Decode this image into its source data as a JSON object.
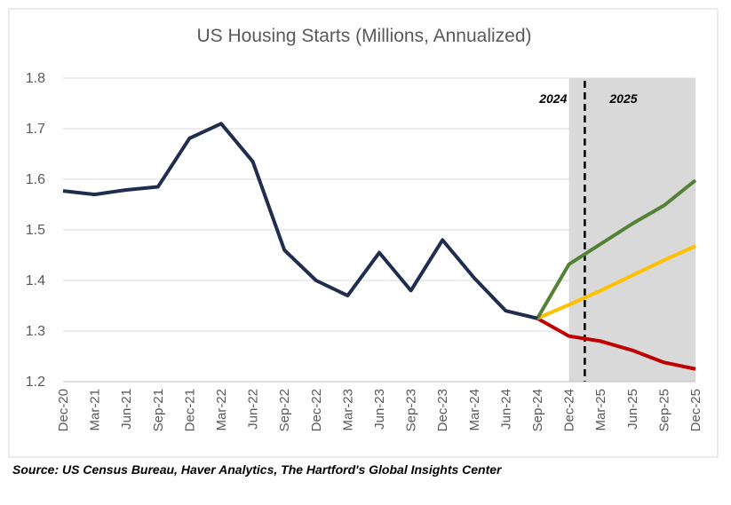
{
  "chart_data": {
    "type": "line",
    "title": "US Housing Starts (Millions, Annualized)",
    "categories": [
      "Dec-20",
      "Mar-21",
      "Jun-21",
      "Sep-21",
      "Dec-21",
      "Mar-22",
      "Jun-22",
      "Sep-22",
      "Dec-22",
      "Mar-23",
      "Jun-23",
      "Sep-23",
      "Dec-23",
      "Mar-24",
      "Jun-24",
      "Sep-24",
      "Dec-24",
      "Mar-25",
      "Jun-25",
      "Sep-25",
      "Dec-25"
    ],
    "series": [
      {
        "color": "#1f2d4e",
        "values": [
          1.577,
          1.57,
          1.579,
          1.585,
          1.681,
          1.71,
          1.635,
          1.46,
          1.4,
          1.37,
          1.455,
          1.38,
          1.48,
          1.405,
          1.34,
          1.325,
          null,
          null,
          null,
          null,
          null
        ]
      },
      {
        "color": "#548235",
        "values": [
          null,
          null,
          null,
          null,
          null,
          null,
          null,
          null,
          null,
          null,
          null,
          null,
          null,
          null,
          null,
          1.325,
          1.432,
          1.472,
          1.512,
          1.548,
          1.598
        ]
      },
      {
        "color": "#ffc000",
        "values": [
          null,
          null,
          null,
          null,
          null,
          null,
          null,
          null,
          null,
          null,
          null,
          null,
          null,
          null,
          null,
          1.325,
          1.352,
          1.38,
          1.41,
          1.44,
          1.468
        ]
      },
      {
        "color": "#c00000",
        "values": [
          null,
          null,
          null,
          null,
          null,
          null,
          null,
          null,
          null,
          null,
          null,
          null,
          null,
          null,
          null,
          1.325,
          1.29,
          1.28,
          1.262,
          1.238,
          1.225
        ]
      }
    ],
    "ylim": [
      1.2,
      1.8
    ],
    "yticks": [
      1.2,
      1.3,
      1.4,
      1.5,
      1.6,
      1.7,
      1.8
    ],
    "grid": true,
    "annotations": [
      "2024",
      "2025"
    ],
    "source": "Source: US Census Bureau, Haver Analytics, The Hartford's Global Insights Center"
  }
}
